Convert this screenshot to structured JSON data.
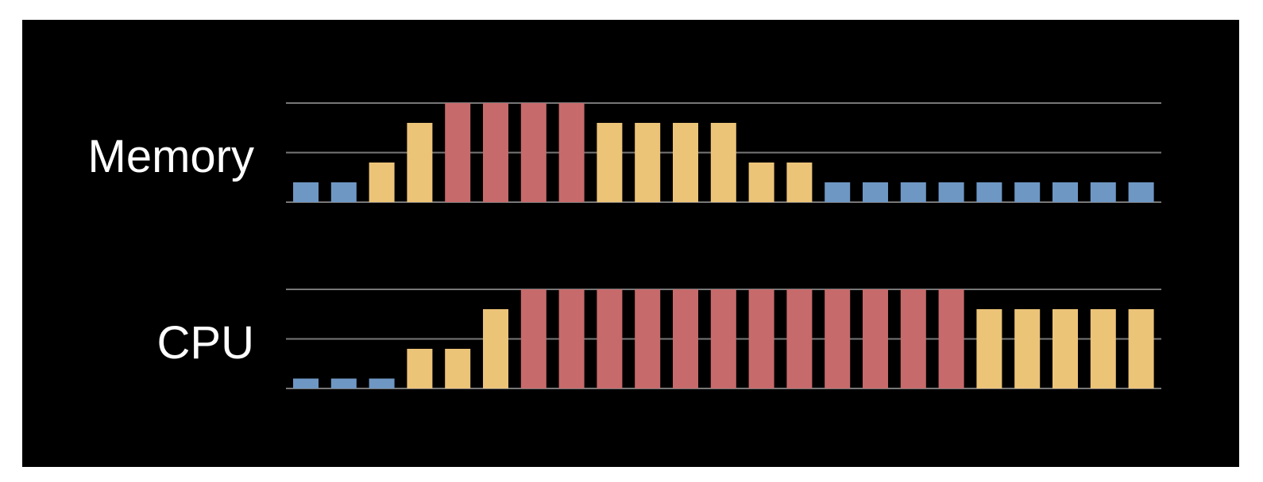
{
  "chart_data": [
    {
      "type": "bar",
      "title": "Memory",
      "ylim": [
        0,
        5
      ],
      "grid": true,
      "levels": {
        "1": "low",
        "2": "medium",
        "4": "medium",
        "5": "high"
      },
      "colors": {
        "low": "#6e97c4",
        "medium": "#ecc478",
        "high": "#c76a6b"
      },
      "values": [
        1,
        1,
        2,
        4,
        5,
        5,
        5,
        5,
        4,
        4,
        4,
        4,
        2,
        2,
        1,
        1,
        1,
        1,
        1,
        1,
        1,
        1,
        1
      ]
    },
    {
      "type": "bar",
      "title": "CPU",
      "ylim": [
        0,
        5
      ],
      "grid": true,
      "levels": {
        "1": "low",
        "2": "medium",
        "4": "medium",
        "5": "high"
      },
      "colors": {
        "low": "#6e97c4",
        "medium": "#ecc478",
        "high": "#c76a6b"
      },
      "values": [
        0.5,
        0.5,
        0.5,
        2,
        2,
        4,
        5,
        5,
        5,
        5,
        5,
        5,
        5,
        5,
        5,
        5,
        5,
        5,
        4,
        4,
        4,
        4,
        4
      ]
    }
  ],
  "colors": {
    "background": "#000000",
    "grid": "#777777",
    "label": "#ffffff"
  }
}
